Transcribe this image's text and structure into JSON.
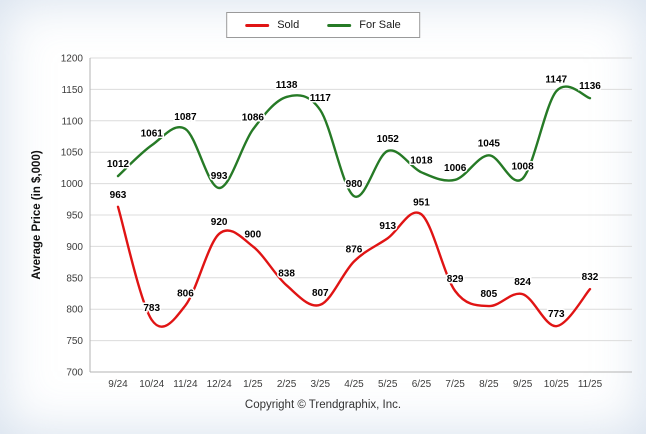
{
  "chart_data": {
    "type": "line",
    "title": "",
    "ylabel": "Average Price (in $,000)",
    "xlabel": "",
    "categories": [
      "9/24",
      "10/24",
      "11/24",
      "12/24",
      "1/25",
      "2/25",
      "3/25",
      "4/25",
      "5/25",
      "6/25",
      "7/25",
      "8/25",
      "9/25",
      "10/25",
      "11/25"
    ],
    "series": [
      {
        "name": "Sold",
        "color": "#e01414",
        "values": [
          963,
          783,
          806,
          920,
          900,
          838,
          807,
          876,
          913,
          951,
          829,
          805,
          824,
          773,
          832
        ]
      },
      {
        "name": "For Sale",
        "color": "#267a26",
        "values": [
          1012,
          1061,
          1087,
          993,
          1086,
          1138,
          1117,
          980,
          1052,
          1018,
          1006,
          1045,
          1008,
          1147,
          1136
        ]
      }
    ],
    "ylim": [
      700,
      1200
    ],
    "ytick_step": 50,
    "grid": "horizontal",
    "legend_position": "top-center"
  },
  "colors": {
    "grid": "#dcdcdc",
    "axis": "#b3b3b3",
    "tick_text": "#3c3c3c",
    "label_text": "#000000"
  },
  "footer": {
    "copyright": "Copyright © Trendgraphix, Inc."
  }
}
